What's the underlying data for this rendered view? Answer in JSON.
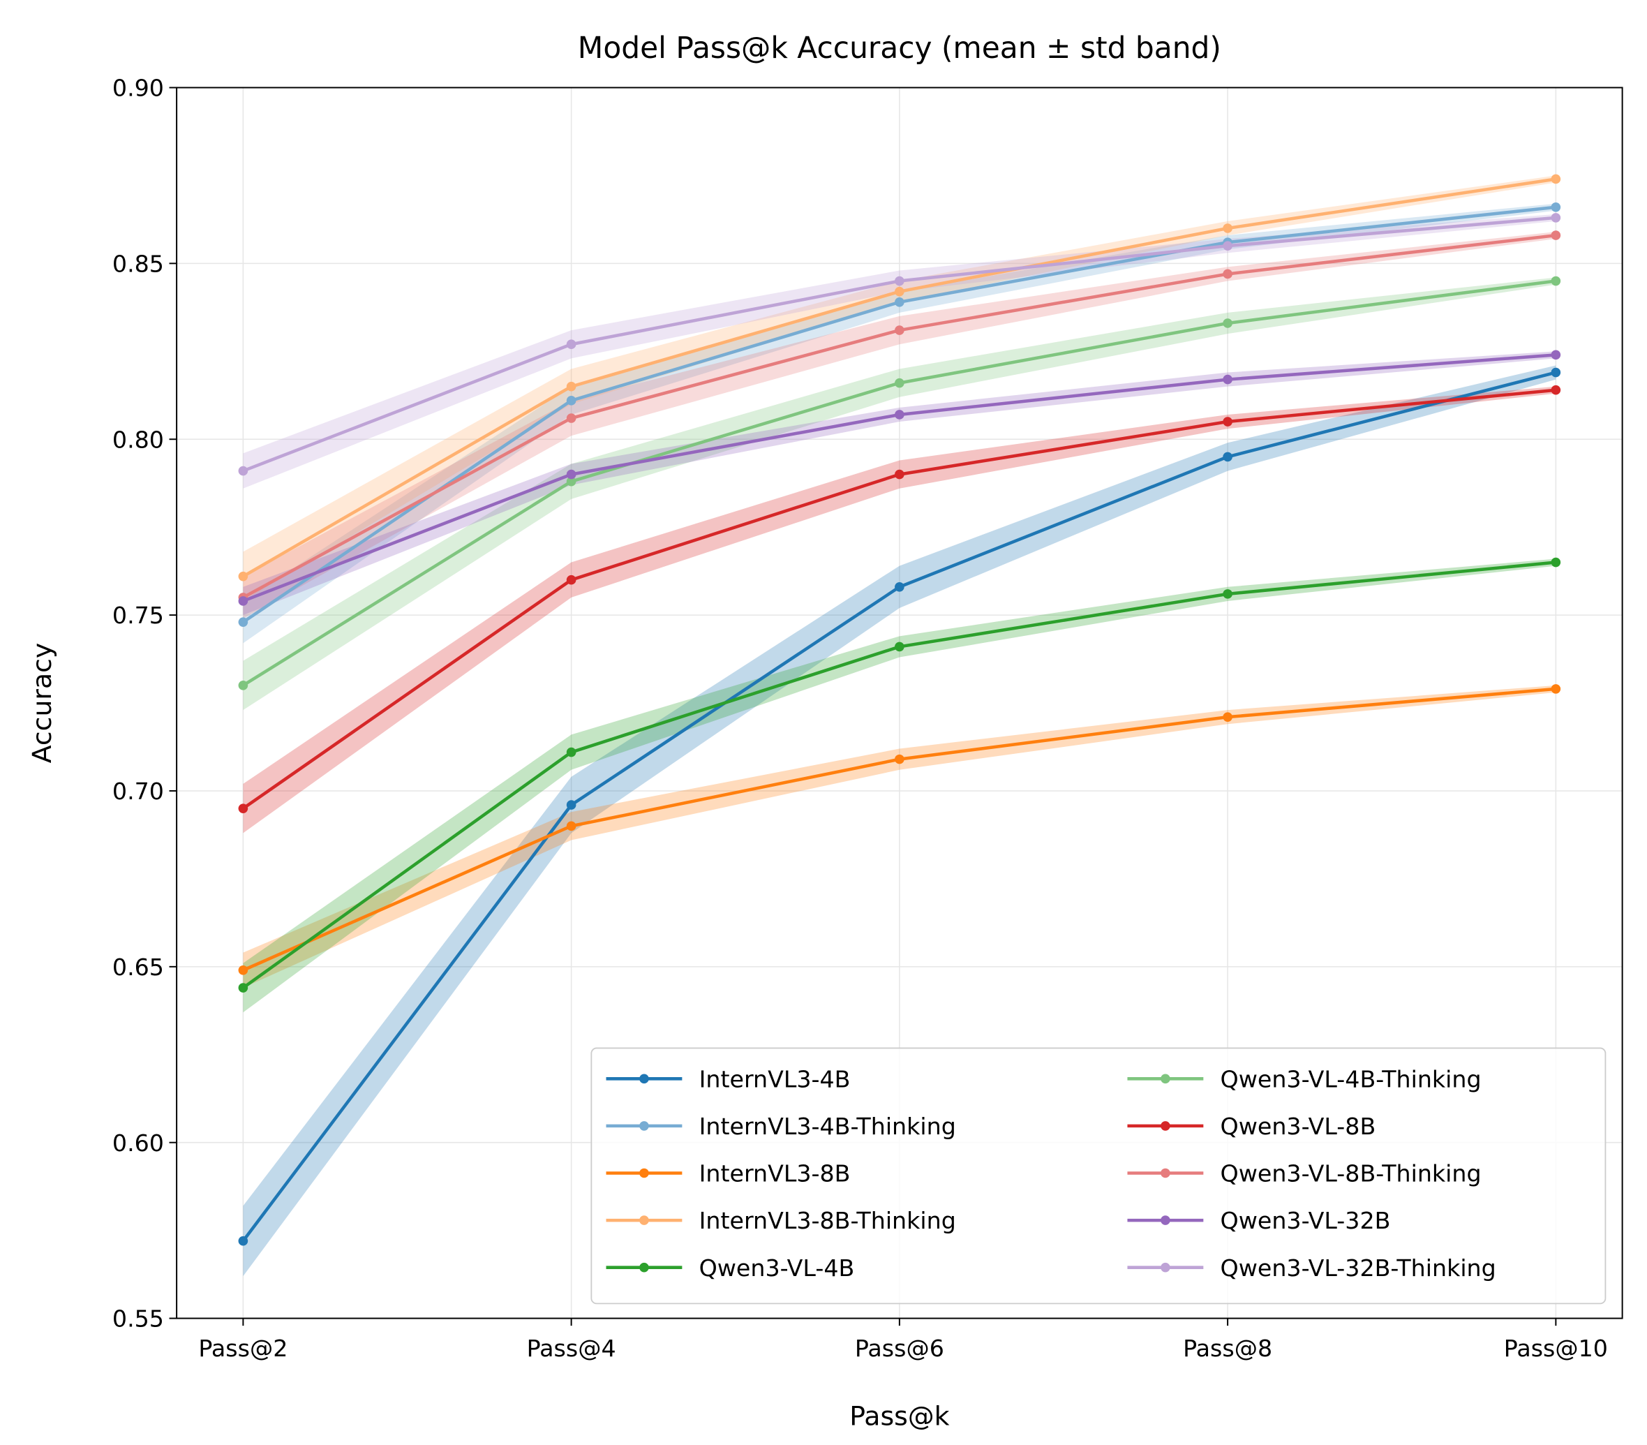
{
  "chart_data": {
    "type": "line",
    "title": "Model Pass@k Accuracy (mean ± std band)",
    "xlabel": "Pass@k",
    "ylabel": "Accuracy",
    "categories": [
      "Pass@2",
      "Pass@4",
      "Pass@6",
      "Pass@8",
      "Pass@10"
    ],
    "ylim": [
      0.55,
      0.9
    ],
    "yticks": [
      "0.55",
      "0.60",
      "0.65",
      "0.70",
      "0.75",
      "0.80",
      "0.85",
      "0.90"
    ],
    "grid": true,
    "legend_placement": "lower-right",
    "legend_columns": 2,
    "series": [
      {
        "name": "InternVL3-4B",
        "color": "#1f77b4",
        "values": [
          0.572,
          0.696,
          0.758,
          0.795,
          0.819
        ],
        "std": [
          0.01,
          0.008,
          0.006,
          0.004,
          0.002
        ]
      },
      {
        "name": "InternVL3-4B-Thinking",
        "color": "#77acd3",
        "values": [
          0.748,
          0.811,
          0.839,
          0.856,
          0.866
        ],
        "std": [
          0.006,
          0.004,
          0.003,
          0.002,
          0.001
        ]
      },
      {
        "name": "InternVL3-8B",
        "color": "#ff7f0e",
        "values": [
          0.649,
          0.69,
          0.709,
          0.721,
          0.729
        ],
        "std": [
          0.005,
          0.004,
          0.003,
          0.002,
          0.001
        ]
      },
      {
        "name": "InternVL3-8B-Thinking",
        "color": "#ffb170",
        "values": [
          0.761,
          0.815,
          0.842,
          0.86,
          0.874
        ],
        "std": [
          0.007,
          0.005,
          0.003,
          0.002,
          0.001
        ]
      },
      {
        "name": "Qwen3-VL-4B",
        "color": "#2ca02c",
        "values": [
          0.644,
          0.711,
          0.741,
          0.756,
          0.765
        ],
        "std": [
          0.007,
          0.005,
          0.003,
          0.002,
          0.001
        ]
      },
      {
        "name": "Qwen3-VL-4B-Thinking",
        "color": "#7fc57f",
        "values": [
          0.73,
          0.788,
          0.816,
          0.833,
          0.845
        ],
        "std": [
          0.007,
          0.005,
          0.004,
          0.003,
          0.001
        ]
      },
      {
        "name": "Qwen3-VL-8B",
        "color": "#d62728",
        "values": [
          0.695,
          0.76,
          0.79,
          0.805,
          0.814
        ],
        "std": [
          0.007,
          0.005,
          0.004,
          0.002,
          0.001
        ]
      },
      {
        "name": "Qwen3-VL-8B-Thinking",
        "color": "#e67c7d",
        "values": [
          0.755,
          0.806,
          0.831,
          0.847,
          0.858
        ],
        "std": [
          0.006,
          0.005,
          0.004,
          0.002,
          0.001
        ]
      },
      {
        "name": "Qwen3-VL-32B",
        "color": "#9467bd",
        "values": [
          0.754,
          0.79,
          0.807,
          0.817,
          0.824
        ],
        "std": [
          0.004,
          0.003,
          0.002,
          0.002,
          0.001
        ]
      },
      {
        "name": "Qwen3-VL-32B-Thinking",
        "color": "#bea3d6",
        "values": [
          0.791,
          0.827,
          0.845,
          0.855,
          0.863
        ],
        "std": [
          0.005,
          0.004,
          0.003,
          0.002,
          0.001
        ]
      }
    ]
  }
}
